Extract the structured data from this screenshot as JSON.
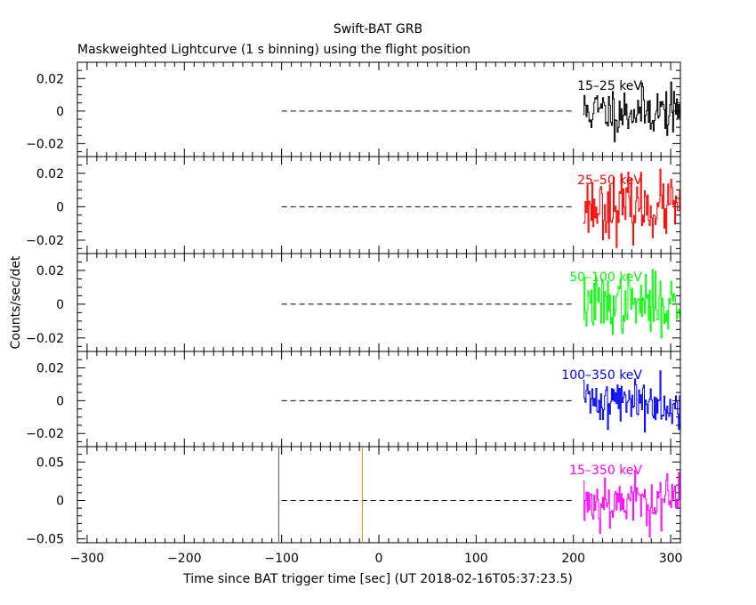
{
  "chart_data": {
    "type": "line",
    "title": "Swift-BAT GRB",
    "subtitle": "Maskweighted Lightcurve (1 s binning) using the flight position",
    "xlabel": "Time since BAT trigger time [sec] (UT 2018-02-16T05:37:23.5)",
    "ylabel": "Counts/sec/det",
    "xlim": [
      -310,
      310
    ],
    "x_ticks": [
      -300,
      -200,
      -100,
      0,
      100,
      200,
      300
    ],
    "x_minor_step": 10,
    "zero_line_range": [
      -100,
      200
    ],
    "data_range": [
      210,
      310
    ],
    "markers": [
      {
        "name": "trigger-window-start",
        "x": -103,
        "color": "#5a3ea8"
      },
      {
        "name": "trigger-window-end",
        "x": -17,
        "color": "#d09020"
      }
    ],
    "panels": [
      {
        "label": "15–25 keV",
        "color": "#000000",
        "ylim": [
          -0.028,
          0.03
        ],
        "y_ticks": [
          -0.02,
          0,
          0.02
        ],
        "y_tick_labels": [
          "−0.02",
          "0",
          "0.02"
        ],
        "minor_step": 0.005,
        "sigma": 0.0075,
        "seed": 11
      },
      {
        "label": "25–50 keV",
        "color": "#ff0000",
        "ylim": [
          -0.028,
          0.03
        ],
        "y_ticks": [
          -0.02,
          0,
          0.02
        ],
        "y_tick_labels": [
          "−0.02",
          "0",
          "0.02"
        ],
        "minor_step": 0.005,
        "sigma": 0.009,
        "seed": 23
      },
      {
        "label": "50–100 keV",
        "color": "#00ff00",
        "ylim": [
          -0.028,
          0.03
        ],
        "y_ticks": [
          -0.02,
          0,
          0.02
        ],
        "y_tick_labels": [
          "−0.02",
          "0",
          "0.02"
        ],
        "minor_step": 0.005,
        "sigma": 0.0085,
        "seed": 37
      },
      {
        "label": "100–350 keV",
        "color": "#0000ff",
        "ylim": [
          -0.028,
          0.03
        ],
        "y_ticks": [
          -0.02,
          0,
          0.02
        ],
        "y_tick_labels": [
          "−0.02",
          "0",
          "0.02"
        ],
        "minor_step": 0.005,
        "sigma": 0.0075,
        "seed": 41
      },
      {
        "label": "15–350 keV",
        "color": "#ff00ff",
        "ylim": [
          -0.055,
          0.07
        ],
        "y_ticks": [
          -0.05,
          0,
          0.05
        ],
        "y_tick_labels": [
          "−0.05",
          "0",
          "0.05"
        ],
        "minor_step": 0.01,
        "sigma": 0.018,
        "seed": 53
      }
    ]
  }
}
